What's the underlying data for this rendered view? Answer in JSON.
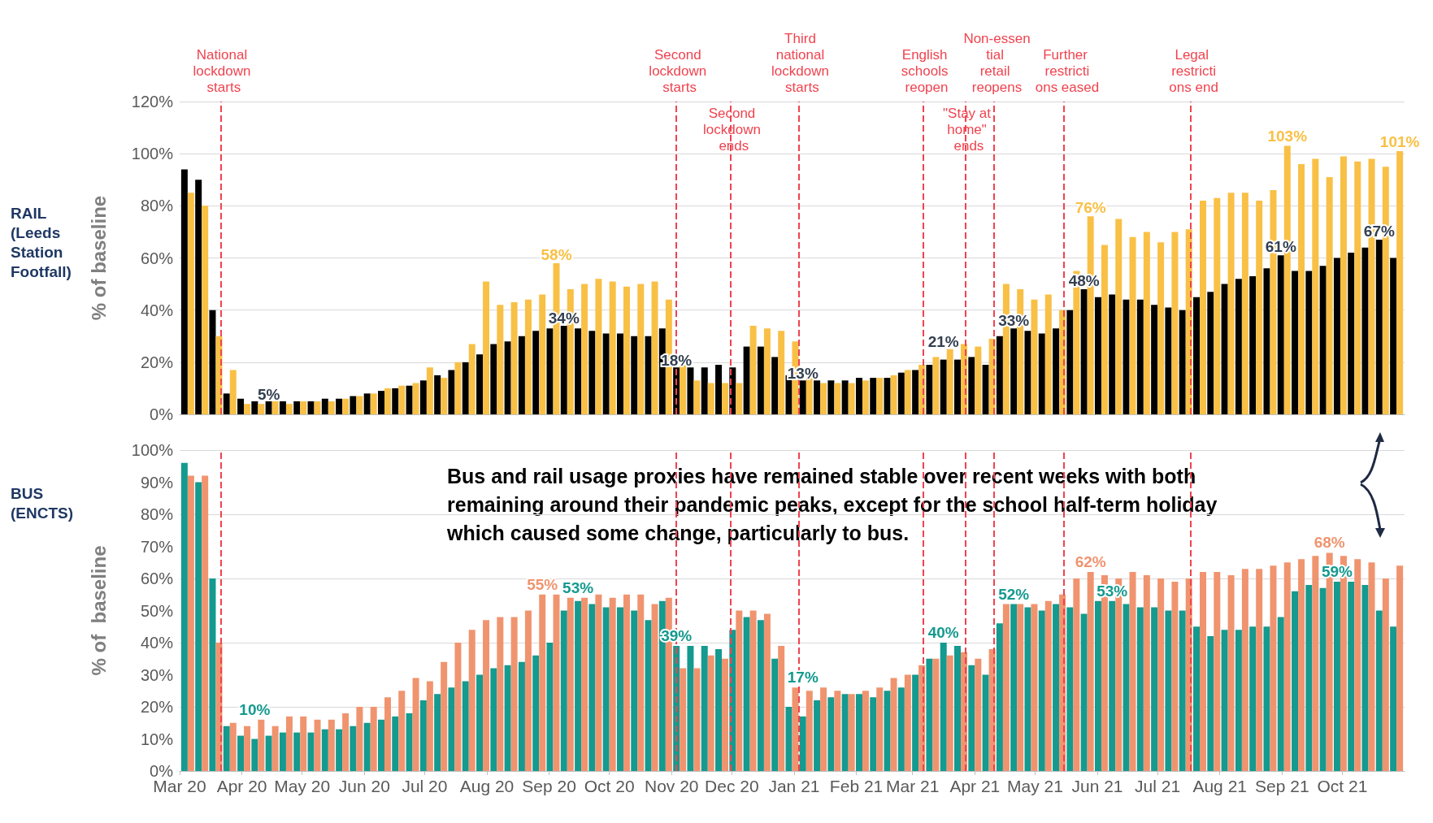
{
  "chart_data": [
    {
      "type": "bar",
      "title": "RAIL (Leeds Station Footfall)",
      "ylabel": "% of baseline",
      "tick_labels": "y",
      "grid": "y",
      "x": [
        "2020-03-05",
        "2020-03-12",
        "2020-03-19",
        "2020-03-26",
        "2020-04-02",
        "2020-04-09",
        "2020-04-16",
        "2020-04-23",
        "2020-04-30",
        "2020-05-07",
        "2020-05-14",
        "2020-05-21",
        "2020-05-28",
        "2020-06-04",
        "2020-06-11",
        "2020-06-18",
        "2020-06-25",
        "2020-07-02",
        "2020-07-09",
        "2020-07-16",
        "2020-07-23",
        "2020-07-30",
        "2020-08-06",
        "2020-08-13",
        "2020-08-20",
        "2020-08-27",
        "2020-09-03",
        "2020-09-10",
        "2020-09-17",
        "2020-09-24",
        "2020-10-01",
        "2020-10-08",
        "2020-10-15",
        "2020-10-22",
        "2020-10-29",
        "2020-11-05",
        "2020-11-12",
        "2020-11-19",
        "2020-11-26",
        "2020-12-03",
        "2020-12-10",
        "2020-12-17",
        "2020-12-24",
        "2020-12-31",
        "2021-01-07",
        "2021-01-14",
        "2021-01-21",
        "2021-01-28",
        "2021-02-04",
        "2021-02-11",
        "2021-02-18",
        "2021-02-25",
        "2021-03-04",
        "2021-03-11",
        "2021-03-18",
        "2021-03-25",
        "2021-04-01",
        "2021-04-08",
        "2021-04-15",
        "2021-04-22",
        "2021-04-29",
        "2021-05-06",
        "2021-05-13",
        "2021-05-20",
        "2021-05-27",
        "2021-06-03",
        "2021-06-10",
        "2021-06-17",
        "2021-06-24",
        "2021-07-01",
        "2021-07-08",
        "2021-07-15",
        "2021-07-22",
        "2021-07-29",
        "2021-08-05",
        "2021-08-12",
        "2021-08-19",
        "2021-08-26",
        "2021-09-02",
        "2021-09-09",
        "2021-09-16",
        "2021-09-23",
        "2021-09-30",
        "2021-10-07",
        "2021-10-14",
        "2021-10-21",
        "2021-10-28"
      ],
      "series": [
        {
          "color": "#000000",
          "values": [
            94,
            90,
            40,
            8,
            6,
            5,
            5,
            5,
            5,
            5,
            6,
            6,
            7,
            8,
            9,
            10,
            11,
            13,
            15,
            17,
            20,
            23,
            27,
            28,
            30,
            32,
            33,
            34,
            33,
            32,
            31,
            31,
            30,
            30,
            33,
            18,
            18,
            18,
            19,
            18,
            26,
            26,
            22,
            15,
            13,
            13,
            13,
            13,
            14,
            14,
            14,
            16,
            17,
            19,
            21,
            21,
            22,
            19,
            30,
            33,
            32,
            31,
            33,
            40,
            48,
            45,
            46,
            44,
            44,
            42,
            41,
            40,
            45,
            47,
            50,
            52,
            53,
            56,
            61,
            55,
            55,
            57,
            60,
            62,
            64,
            67,
            60
          ]
        },
        {
          "color": "#f9c046",
          "values": [
            85,
            80,
            30,
            17,
            4,
            4,
            5,
            4,
            5,
            5,
            5,
            6,
            7,
            8,
            10,
            11,
            12,
            18,
            14,
            20,
            27,
            51,
            42,
            43,
            44,
            46,
            58,
            48,
            50,
            52,
            51,
            49,
            50,
            51,
            44,
            19,
            13,
            12,
            12,
            12,
            34,
            33,
            32,
            28,
            14,
            12,
            12,
            12,
            13,
            14,
            15,
            17,
            19,
            22,
            25,
            27,
            26,
            29,
            50,
            48,
            44,
            46,
            40,
            55,
            76,
            65,
            75,
            68,
            70,
            66,
            70,
            71,
            82,
            83,
            85,
            85,
            82,
            86,
            103,
            96,
            98,
            91,
            99,
            97,
            98,
            95,
            101
          ]
        }
      ],
      "xlim": [
        "2020-03-01",
        "2021-11-01"
      ],
      "ylim": [
        0,
        120
      ],
      "yticks": [
        {
          "value": 0,
          "label": "0%"
        },
        {
          "value": 20,
          "label": "20%"
        },
        {
          "value": 40,
          "label": "40%"
        },
        {
          "value": 60,
          "label": "60%"
        },
        {
          "value": 80,
          "label": "80%"
        },
        {
          "value": 100,
          "label": "100%"
        },
        {
          "value": 120,
          "label": "120%"
        }
      ],
      "ref_lines": [
        {
          "axis": "x",
          "value": "2020-03-23",
          "label": "National lockdown starts",
          "color": "#f0434f",
          "line_style": "dashed"
        },
        {
          "axis": "x",
          "value": "2020-11-05",
          "label": "Second lockdown starts",
          "color": "#f0434f",
          "line_style": "dashed"
        },
        {
          "axis": "x",
          "value": "2020-12-02",
          "label": "Second lockdown ends",
          "color": "#f0434f",
          "line_style": "dashed"
        },
        {
          "axis": "x",
          "value": "2021-01-05",
          "label": "Third national lockdown starts",
          "color": "#f0434f",
          "line_style": "dashed"
        },
        {
          "axis": "x",
          "value": "2021-03-08",
          "label": "English schools reopen",
          "color": "#f0434f",
          "line_style": "dashed"
        },
        {
          "axis": "x",
          "value": "2021-03-29",
          "label": "\"Stay at home\" ends",
          "color": "#f0434f",
          "line_style": "dashed"
        },
        {
          "axis": "x",
          "value": "2021-04-12",
          "label": "Non-essential retail reopens",
          "color": "#f0434f",
          "line_style": "dashed"
        },
        {
          "axis": "x",
          "value": "2021-05-17",
          "label": "Further restrictions eased",
          "color": "#f0434f",
          "line_style": "dashed"
        },
        {
          "axis": "x",
          "value": "2021-07-19",
          "label": "Legal restrictions end",
          "color": "#f0434f",
          "line_style": "dashed"
        }
      ],
      "annotations": [
        {
          "text": "5%",
          "x": "2020-04-16",
          "y": 5
        },
        {
          "text": "58%",
          "x": "2020-09-03",
          "y": 58
        },
        {
          "text": "34%",
          "x": "2020-09-10",
          "y": 34
        },
        {
          "text": "18%",
          "x": "2020-11-05",
          "y": 18
        },
        {
          "text": "13%",
          "x": "2021-01-07",
          "y": 13
        },
        {
          "text": "21%",
          "x": "2021-03-18",
          "y": 21
        },
        {
          "text": "33%",
          "x": "2021-04-22",
          "y": 33
        },
        {
          "text": "48%",
          "x": "2021-05-27",
          "y": 48
        },
        {
          "text": "76%",
          "x": "2021-05-27",
          "y": 76
        },
        {
          "text": "61%",
          "x": "2021-09-02",
          "y": 61
        },
        {
          "text": "103%",
          "x": "2021-09-02",
          "y": 103
        },
        {
          "text": "67%",
          "x": "2021-10-21",
          "y": 67
        },
        {
          "text": "101%",
          "x": "2021-10-28",
          "y": 101
        }
      ]
    },
    {
      "type": "bar",
      "title": "BUS (ENCTS)",
      "ylabel": "% of  baseline",
      "grid": "y",
      "x": [
        "2020-03-05",
        "2020-03-12",
        "2020-03-19",
        "2020-03-26",
        "2020-04-02",
        "2020-04-09",
        "2020-04-16",
        "2020-04-23",
        "2020-04-30",
        "2020-05-07",
        "2020-05-14",
        "2020-05-21",
        "2020-05-28",
        "2020-06-04",
        "2020-06-11",
        "2020-06-18",
        "2020-06-25",
        "2020-07-02",
        "2020-07-09",
        "2020-07-16",
        "2020-07-23",
        "2020-07-30",
        "2020-08-06",
        "2020-08-13",
        "2020-08-20",
        "2020-08-27",
        "2020-09-03",
        "2020-09-10",
        "2020-09-17",
        "2020-09-24",
        "2020-10-01",
        "2020-10-08",
        "2020-10-15",
        "2020-10-22",
        "2020-10-29",
        "2020-11-05",
        "2020-11-12",
        "2020-11-19",
        "2020-11-26",
        "2020-12-03",
        "2020-12-10",
        "2020-12-17",
        "2020-12-24",
        "2020-12-31",
        "2021-01-07",
        "2021-01-14",
        "2021-01-21",
        "2021-01-28",
        "2021-02-04",
        "2021-02-11",
        "2021-02-18",
        "2021-02-25",
        "2021-03-04",
        "2021-03-11",
        "2021-03-18",
        "2021-03-25",
        "2021-04-01",
        "2021-04-08",
        "2021-04-15",
        "2021-04-22",
        "2021-04-29",
        "2021-05-06",
        "2021-05-13",
        "2021-05-20",
        "2021-05-27",
        "2021-06-03",
        "2021-06-10",
        "2021-06-17",
        "2021-06-24",
        "2021-07-01",
        "2021-07-08",
        "2021-07-15",
        "2021-07-22",
        "2021-07-29",
        "2021-08-05",
        "2021-08-12",
        "2021-08-19",
        "2021-08-26",
        "2021-09-02",
        "2021-09-09",
        "2021-09-16",
        "2021-09-23",
        "2021-09-30",
        "2021-10-07",
        "2021-10-14",
        "2021-10-21",
        "2021-10-28"
      ],
      "series": [
        {
          "color": "#149a8f",
          "values": [
            96,
            90,
            60,
            14,
            11,
            10,
            11,
            12,
            12,
            12,
            13,
            13,
            14,
            15,
            16,
            17,
            18,
            22,
            24,
            26,
            28,
            30,
            32,
            33,
            34,
            36,
            40,
            50,
            53,
            52,
            51,
            51,
            50,
            47,
            53,
            39,
            39,
            39,
            38,
            44,
            48,
            47,
            35,
            20,
            17,
            22,
            23,
            24,
            24,
            23,
            25,
            26,
            30,
            35,
            40,
            39,
            33,
            30,
            46,
            52,
            51,
            50,
            52,
            51,
            49,
            53,
            53,
            52,
            51,
            51,
            50,
            50,
            45,
            42,
            44,
            44,
            45,
            45,
            48,
            56,
            58,
            57,
            59,
            59,
            58,
            50,
            45
          ]
        },
        {
          "color": "#f0946f",
          "values": [
            92,
            92,
            40,
            15,
            14,
            16,
            14,
            17,
            17,
            16,
            16,
            18,
            20,
            20,
            23,
            25,
            29,
            28,
            34,
            40,
            44,
            47,
            48,
            48,
            50,
            55,
            55,
            54,
            54,
            55,
            54,
            55,
            55,
            52,
            54,
            32,
            32,
            36,
            35,
            50,
            50,
            49,
            39,
            26,
            25,
            26,
            25,
            24,
            25,
            26,
            29,
            30,
            33,
            35,
            36,
            37,
            35,
            38,
            52,
            52,
            52,
            53,
            55,
            60,
            62,
            61,
            60,
            62,
            61,
            60,
            59,
            60,
            62,
            62,
            61,
            63,
            63,
            64,
            65,
            66,
            67,
            68,
            67,
            66,
            65,
            60,
            64
          ]
        }
      ],
      "xlim": [
        "2020-03-01",
        "2021-11-01"
      ],
      "xticks": [
        {
          "value": "2020-03-01",
          "label": "Mar 20"
        },
        {
          "value": "2020-04-01",
          "label": "Apr 20"
        },
        {
          "value": "2020-05-01",
          "label": "May 20"
        },
        {
          "value": "2020-06-01",
          "label": "Jun 20"
        },
        {
          "value": "2020-07-01",
          "label": "Jul 20"
        },
        {
          "value": "2020-08-01",
          "label": "Aug 20"
        },
        {
          "value": "2020-09-01",
          "label": "Sep 20"
        },
        {
          "value": "2020-10-01",
          "label": "Oct 20"
        },
        {
          "value": "2020-11-01",
          "label": "Nov 20"
        },
        {
          "value": "2020-12-01",
          "label": "Dec 20"
        },
        {
          "value": "2021-01-01",
          "label": "Jan 21"
        },
        {
          "value": "2021-02-01",
          "label": "Feb 21"
        },
        {
          "value": "2021-03-01",
          "label": "Mar 21"
        },
        {
          "value": "2021-04-01",
          "label": "Apr 21"
        },
        {
          "value": "2021-05-01",
          "label": "May 21"
        },
        {
          "value": "2021-06-01",
          "label": "Jun 21"
        },
        {
          "value": "2021-07-01",
          "label": "Jul 21"
        },
        {
          "value": "2021-08-01",
          "label": "Aug 21"
        },
        {
          "value": "2021-09-01",
          "label": "Sep 21"
        },
        {
          "value": "2021-10-01",
          "label": "Oct 21"
        }
      ],
      "ylim": [
        0,
        100
      ],
      "yticks": [
        {
          "value": 0,
          "label": "0%"
        },
        {
          "value": 10,
          "label": "10%"
        },
        {
          "value": 20,
          "label": "20%"
        },
        {
          "value": 30,
          "label": "30%"
        },
        {
          "value": 40,
          "label": "40%"
        },
        {
          "value": 50,
          "label": "50%"
        },
        {
          "value": 60,
          "label": "60%"
        },
        {
          "value": 70,
          "label": "70%"
        },
        {
          "value": 80,
          "label": "80%"
        },
        {
          "value": 90,
          "label": "90%"
        },
        {
          "value": 100,
          "label": "100%"
        }
      ],
      "ref_lines": [
        {
          "axis": "x",
          "value": "2020-03-23",
          "color": "#f0434f",
          "line_style": "dashed"
        },
        {
          "axis": "x",
          "value": "2020-11-05",
          "color": "#f0434f",
          "line_style": "dashed"
        },
        {
          "axis": "x",
          "value": "2020-12-02",
          "color": "#f0434f",
          "line_style": "dashed"
        },
        {
          "axis": "x",
          "value": "2021-01-05",
          "color": "#f0434f",
          "line_style": "dashed"
        },
        {
          "axis": "x",
          "value": "2021-03-08",
          "color": "#f0434f",
          "line_style": "dashed"
        },
        {
          "axis": "x",
          "value": "2021-03-29",
          "color": "#f0434f",
          "line_style": "dashed"
        },
        {
          "axis": "x",
          "value": "2021-04-12",
          "color": "#f0434f",
          "line_style": "dashed"
        },
        {
          "axis": "x",
          "value": "2021-05-17",
          "color": "#f0434f",
          "line_style": "dashed"
        },
        {
          "axis": "x",
          "value": "2021-07-19",
          "color": "#f0434f",
          "line_style": "dashed"
        }
      ],
      "annotations": [
        "Bus and rail usage proxies have remained stable over recent weeks with both remaining around their pandemic peaks, except for the school half-term holiday which caused some change, particularly to bus.",
        {
          "text": "10%",
          "x": "2020-04-09",
          "y": 10
        },
        {
          "text": "55%",
          "x": "2020-08-27",
          "y": 55
        },
        {
          "text": "53%",
          "x": "2020-09-17",
          "y": 53
        },
        {
          "text": "39%",
          "x": "2020-11-05",
          "y": 39
        },
        {
          "text": "17%",
          "x": "2021-01-07",
          "y": 17
        },
        {
          "text": "40%",
          "x": "2021-03-18",
          "y": 40
        },
        {
          "text": "52%",
          "x": "2021-04-22",
          "y": 52
        },
        {
          "text": "62%",
          "x": "2021-05-27",
          "y": 62
        },
        {
          "text": "53%",
          "x": "2021-06-10",
          "y": 53
        },
        {
          "text": "68%",
          "x": "2021-09-23",
          "y": 68
        },
        {
          "text": "59%",
          "x": "2021-09-30",
          "y": 59
        }
      ]
    }
  ]
}
